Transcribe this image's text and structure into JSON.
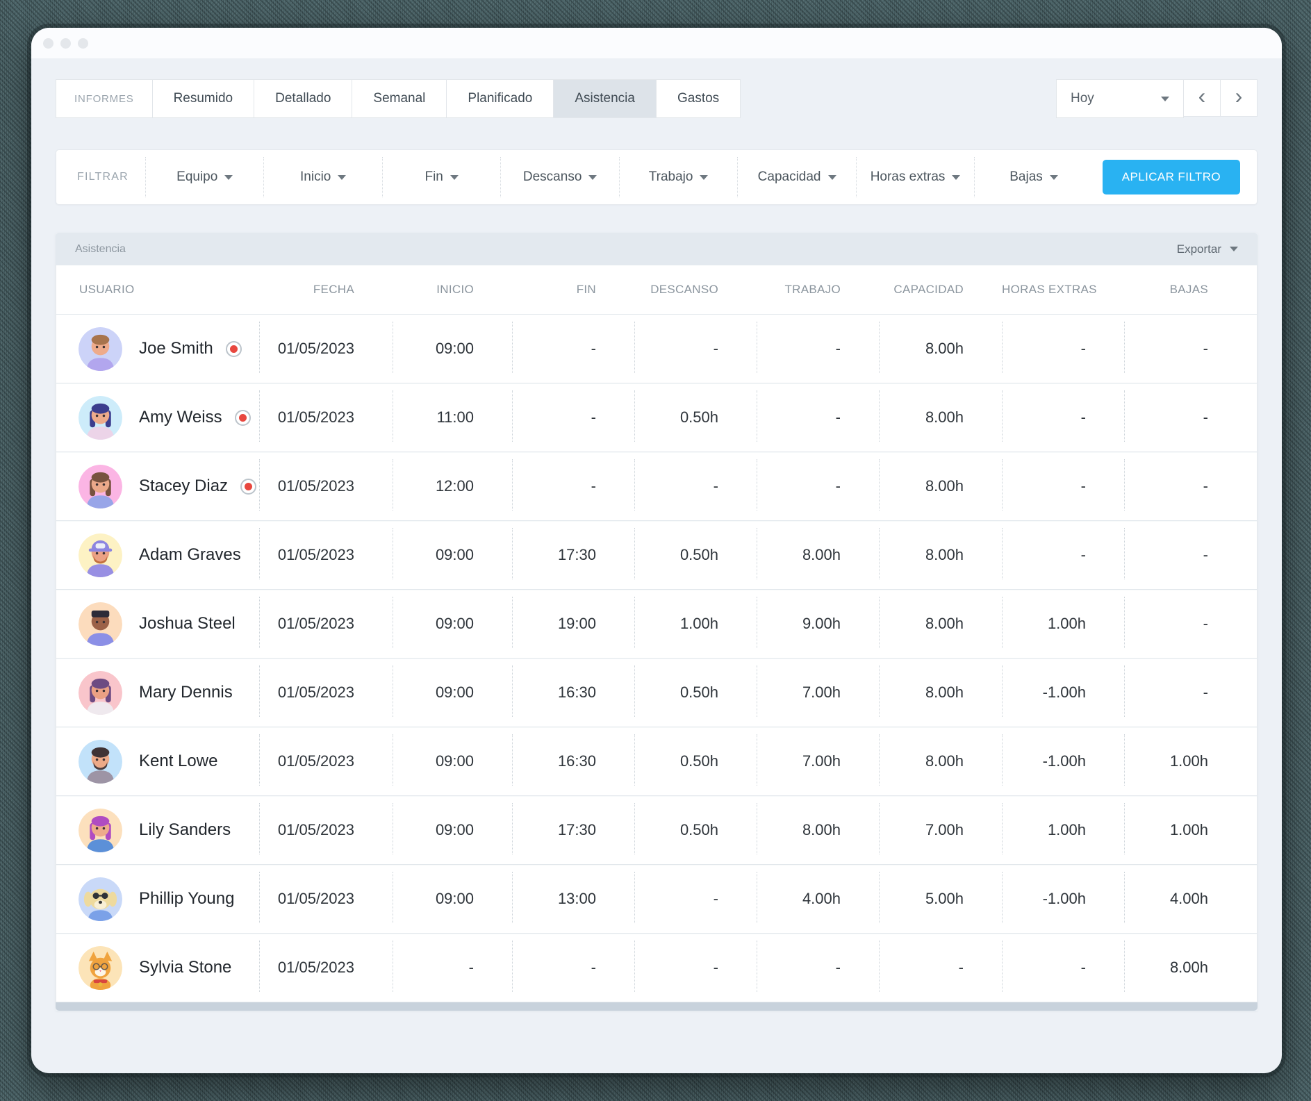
{
  "titlebar": {
    "dots": 3
  },
  "tabs": {
    "group_label": "INFORMES",
    "items": [
      {
        "label": "Resumido",
        "active": false
      },
      {
        "label": "Detallado",
        "active": false
      },
      {
        "label": "Semanal",
        "active": false
      },
      {
        "label": "Planificado",
        "active": false
      },
      {
        "label": "Asistencia",
        "active": true
      },
      {
        "label": "Gastos",
        "active": false
      }
    ]
  },
  "period": {
    "value": "Hoy"
  },
  "icons": {
    "chevron_left": "‹",
    "chevron_right": "›"
  },
  "filters": {
    "label": "FILTRAR",
    "items": [
      "Equipo",
      "Inicio",
      "Fin",
      "Descanso",
      "Trabajo",
      "Capacidad",
      "Horas extras",
      "Bajas"
    ],
    "apply_label": "APLICAR FILTRO"
  },
  "table": {
    "title": "Asistencia",
    "export_label": "Exportar",
    "columns": [
      "USUARIO",
      "FECHA",
      "INICIO",
      "FIN",
      "DESCANSO",
      "TRABAJO",
      "CAPACIDAD",
      "HORAS EXTRAS",
      "BAJAS"
    ],
    "rows": [
      {
        "user": "Joe Smith",
        "tracking": true,
        "avatar": {
          "kind": "person",
          "style": "short",
          "bg": "#ccd3f8",
          "hair": "#a8744d",
          "skin": "#eeab8b",
          "shirt": "#b2a6ee"
        },
        "cells": [
          "01/05/2023",
          "09:00",
          "-",
          "-",
          "-",
          "8.00h",
          "-",
          "-"
        ]
      },
      {
        "user": "Amy Weiss",
        "tracking": true,
        "avatar": {
          "kind": "person",
          "style": "long",
          "bg": "#cdecfa",
          "hair": "#3c3d8d",
          "skin": "#eeab8b",
          "shirt": "#ecd4e8"
        },
        "cells": [
          "01/05/2023",
          "11:00",
          "-",
          "0.50h",
          "-",
          "8.00h",
          "-",
          "-"
        ]
      },
      {
        "user": "Stacey Diaz",
        "tracking": true,
        "avatar": {
          "kind": "person",
          "style": "long",
          "bg": "#fbb5e4",
          "hair": "#77523f",
          "skin": "#eaa98a",
          "shirt": "#98a5e8"
        },
        "cells": [
          "01/05/2023",
          "12:00",
          "-",
          "-",
          "-",
          "8.00h",
          "-",
          "-"
        ]
      },
      {
        "user": "Adam Graves",
        "tracking": false,
        "avatar": {
          "kind": "person",
          "style": "cap",
          "cap": "#8d85e0",
          "bg": "#fdf2c4",
          "hair": "#c4703d",
          "beard": "#c4703d",
          "skin": "#eba184",
          "shirt": "#988fe3"
        },
        "cells": [
          "01/05/2023",
          "09:00",
          "17:30",
          "0.50h",
          "8.00h",
          "8.00h",
          "-",
          "-"
        ]
      },
      {
        "user": "Joshua Steel",
        "tracking": false,
        "avatar": {
          "kind": "person",
          "style": "flat",
          "bg": "#fcdcbd",
          "hair": "#2c2b38",
          "skin": "#9c6248",
          "shirt": "#8b8fe6"
        },
        "cells": [
          "01/05/2023",
          "09:00",
          "19:00",
          "1.00h",
          "9.00h",
          "8.00h",
          "1.00h",
          "-"
        ]
      },
      {
        "user": "Mary Dennis",
        "tracking": false,
        "avatar": {
          "kind": "person",
          "style": "long",
          "bg": "#f9c5cb",
          "hair": "#6d4b82",
          "skin": "#eba184",
          "shirt": "#efe9ee"
        },
        "cells": [
          "01/05/2023",
          "09:00",
          "16:30",
          "0.50h",
          "7.00h",
          "8.00h",
          "-1.00h",
          "-"
        ]
      },
      {
        "user": "Kent Lowe",
        "tracking": false,
        "avatar": {
          "kind": "person",
          "style": "short",
          "bg": "#c2e2fa",
          "hair": "#3f3335",
          "beard": "#4a3b3c",
          "skin": "#edaa88",
          "shirt": "#9d94a5"
        },
        "cells": [
          "01/05/2023",
          "09:00",
          "16:30",
          "0.50h",
          "7.00h",
          "8.00h",
          "-1.00h",
          "1.00h"
        ]
      },
      {
        "user": "Lily Sanders",
        "tracking": false,
        "avatar": {
          "kind": "person",
          "style": "long",
          "bg": "#fce0bd",
          "hair": "#b04cc2",
          "skin": "#eeab8b",
          "shirt": "#5c90d8"
        },
        "cells": [
          "01/05/2023",
          "09:00",
          "17:30",
          "0.50h",
          "8.00h",
          "7.00h",
          "1.00h",
          "1.00h"
        ]
      },
      {
        "user": "Phillip Young",
        "tracking": false,
        "avatar": {
          "kind": "dog",
          "bg": "#c9d9f8",
          "fur": "#eeda9e",
          "shirt": "#7ba1e8"
        },
        "cells": [
          "01/05/2023",
          "09:00",
          "13:00",
          "-",
          "4.00h",
          "5.00h",
          "-1.00h",
          "4.00h"
        ]
      },
      {
        "user": "Sylvia Stone",
        "tracking": false,
        "avatar": {
          "kind": "cat",
          "bg": "#fce4b8",
          "fur": "#f0a33e"
        },
        "cells": [
          "01/05/2023",
          "-",
          "-",
          "-",
          "-",
          "-",
          "-",
          "8.00h"
        ]
      }
    ]
  },
  "colors": {
    "accent": "#29b2f2",
    "tracking_dot": "#e8473f",
    "active_tab_bg": "#dde3e9",
    "band_bg": "#e3e9ef"
  }
}
